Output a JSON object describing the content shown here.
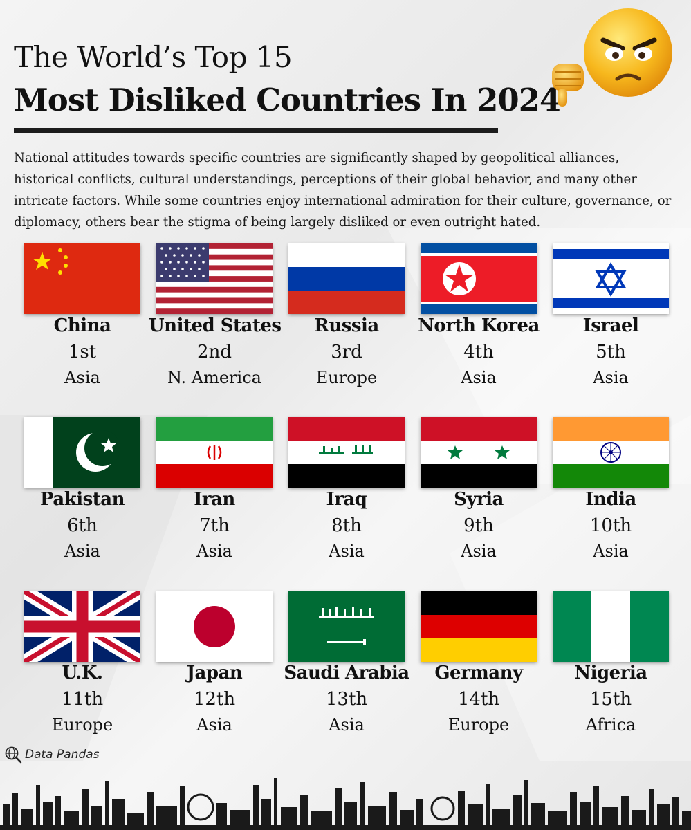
{
  "header": {
    "title_line1": "The World’s Top 15",
    "title_line2": "Most Disliked Countries In 2024"
  },
  "intro": "National attitudes towards specific countries are significantly shaped by geopolitical alliances, historical conflicts, cultural understandings, perceptions of their global behavior, and many other intricate factors. While some countries enjoy international admiration for their culture, governance, or diplomacy, others bear the stigma of being largely disliked or even outright hated.",
  "countries": [
    {
      "name": "China",
      "rank": "1st",
      "region": "Asia",
      "flag": "china-flag"
    },
    {
      "name": "United States",
      "rank": "2nd",
      "region": "N. America",
      "flag": "usa-flag"
    },
    {
      "name": "Russia",
      "rank": "3rd",
      "region": "Europe",
      "flag": "russia-flag"
    },
    {
      "name": "North Korea",
      "rank": "4th",
      "region": "Asia",
      "flag": "north-korea-flag"
    },
    {
      "name": "Israel",
      "rank": "5th",
      "region": "Asia",
      "flag": "israel-flag"
    },
    {
      "name": "Pakistan",
      "rank": "6th",
      "region": "Asia",
      "flag": "pakistan-flag"
    },
    {
      "name": "Iran",
      "rank": "7th",
      "region": "Asia",
      "flag": "iran-flag"
    },
    {
      "name": "Iraq",
      "rank": "8th",
      "region": "Asia",
      "flag": "iraq-flag"
    },
    {
      "name": "Syria",
      "rank": "9th",
      "region": "Asia",
      "flag": "syria-flag"
    },
    {
      "name": "India",
      "rank": "10th",
      "region": "Asia",
      "flag": "india-flag"
    },
    {
      "name": "U.K.",
      "rank": "11th",
      "region": "Europe",
      "flag": "uk-flag"
    },
    {
      "name": "Japan",
      "rank": "12th",
      "region": "Asia",
      "flag": "japan-flag"
    },
    {
      "name": "Saudi Arabia",
      "rank": "13th",
      "region": "Asia",
      "flag": "saudi-arabia-flag"
    },
    {
      "name": "Germany",
      "rank": "14th",
      "region": "Europe",
      "flag": "germany-flag"
    },
    {
      "name": "Nigeria",
      "rank": "15th",
      "region": "Africa",
      "flag": "nigeria-flag"
    }
  ],
  "source": {
    "label": "Data Pandas",
    "icon": "globe-magnifier-icon"
  },
  "decor": {
    "mascot": "angry-emoji-thumbs-down-icon",
    "footer": "city-skyline-silhouette"
  },
  "colors": {
    "title": "#111111",
    "rule": "#1c1c1c",
    "skyline": "#1a1a1a"
  }
}
